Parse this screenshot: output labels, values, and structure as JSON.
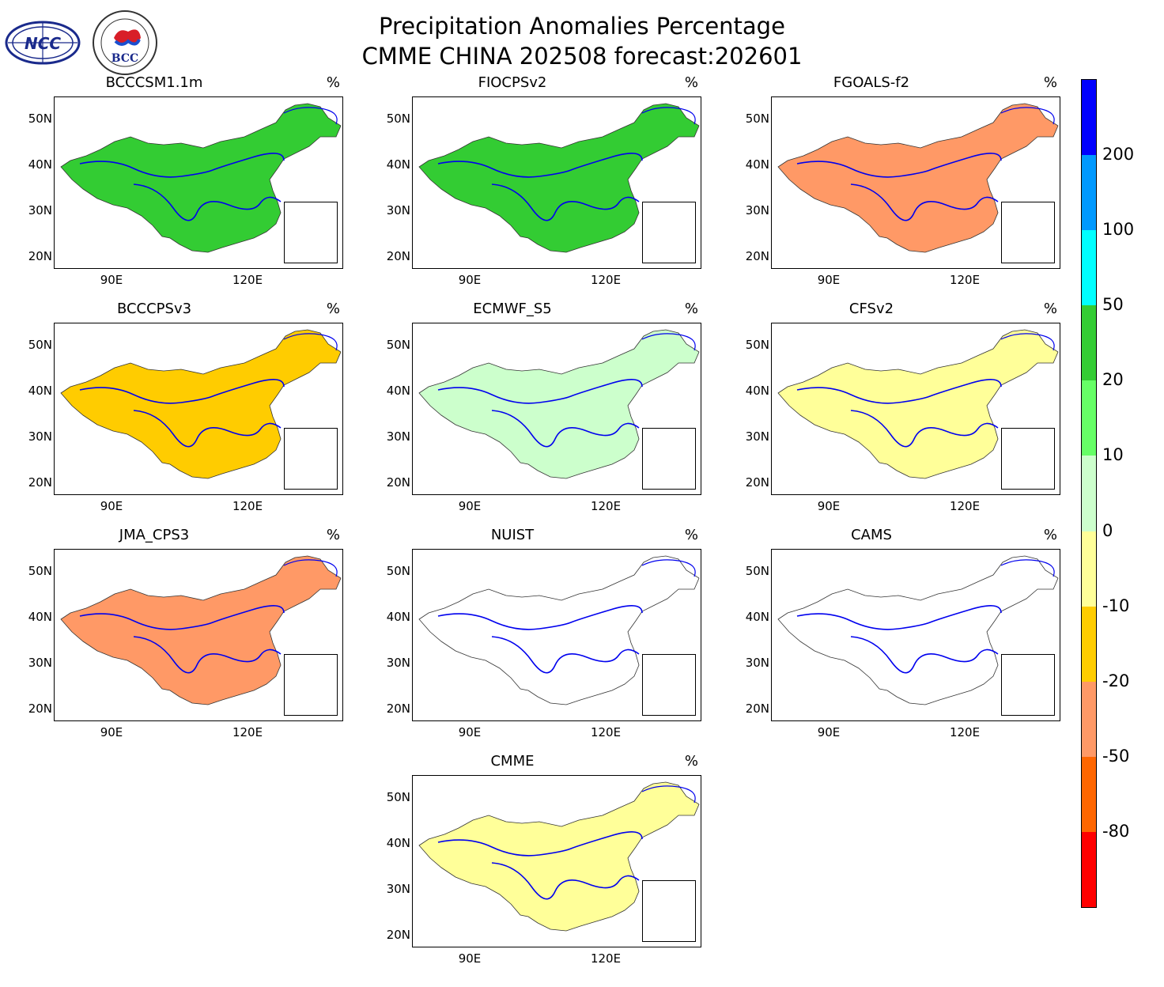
{
  "header": {
    "title_line1": "Precipitation Anomalies Percentage",
    "title_line2": "CMME CHINA 202508 forecast:202601",
    "logo_left_text": "NCC",
    "logo_right_text": "BCC"
  },
  "panel_unit": "%",
  "lat_labels": [
    "50N",
    "40N",
    "30N",
    "20N"
  ],
  "lon_labels": [
    "90E",
    "120E"
  ],
  "panels": [
    {
      "name": "BCCCSM1.1m",
      "has_data": true,
      "fill": "#33cc33"
    },
    {
      "name": "FIOCPSv2",
      "has_data": true,
      "fill": "#33cc33"
    },
    {
      "name": "FGOALS-f2",
      "has_data": true,
      "fill": "#ff9966"
    },
    {
      "name": "BCCCPSv3",
      "has_data": true,
      "fill": "#ffcc00"
    },
    {
      "name": "ECMWF_S5",
      "has_data": true,
      "fill": "#ccffcc"
    },
    {
      "name": "CFSv2",
      "has_data": true,
      "fill": "#ffff99"
    },
    {
      "name": "JMA_CPS3",
      "has_data": true,
      "fill": "#ff9966"
    },
    {
      "name": "NUIST",
      "has_data": false,
      "fill": "#ffffff"
    },
    {
      "name": "CAMS",
      "has_data": false,
      "fill": "#ffffff"
    },
    {
      "name": "CMME",
      "has_data": true,
      "fill": "#ffff99"
    }
  ],
  "colorbar": {
    "labels": [
      "200",
      "100",
      "50",
      "20",
      "10",
      "0",
      "-10",
      "-20",
      "-50",
      "-80"
    ],
    "colors": [
      "#0000ff",
      "#0099ff",
      "#00ffff",
      "#33cc33",
      "#66ff66",
      "#ccffcc",
      "#ffff99",
      "#ffcc00",
      "#ff9966",
      "#ff6600",
      "#ff0000"
    ]
  }
}
